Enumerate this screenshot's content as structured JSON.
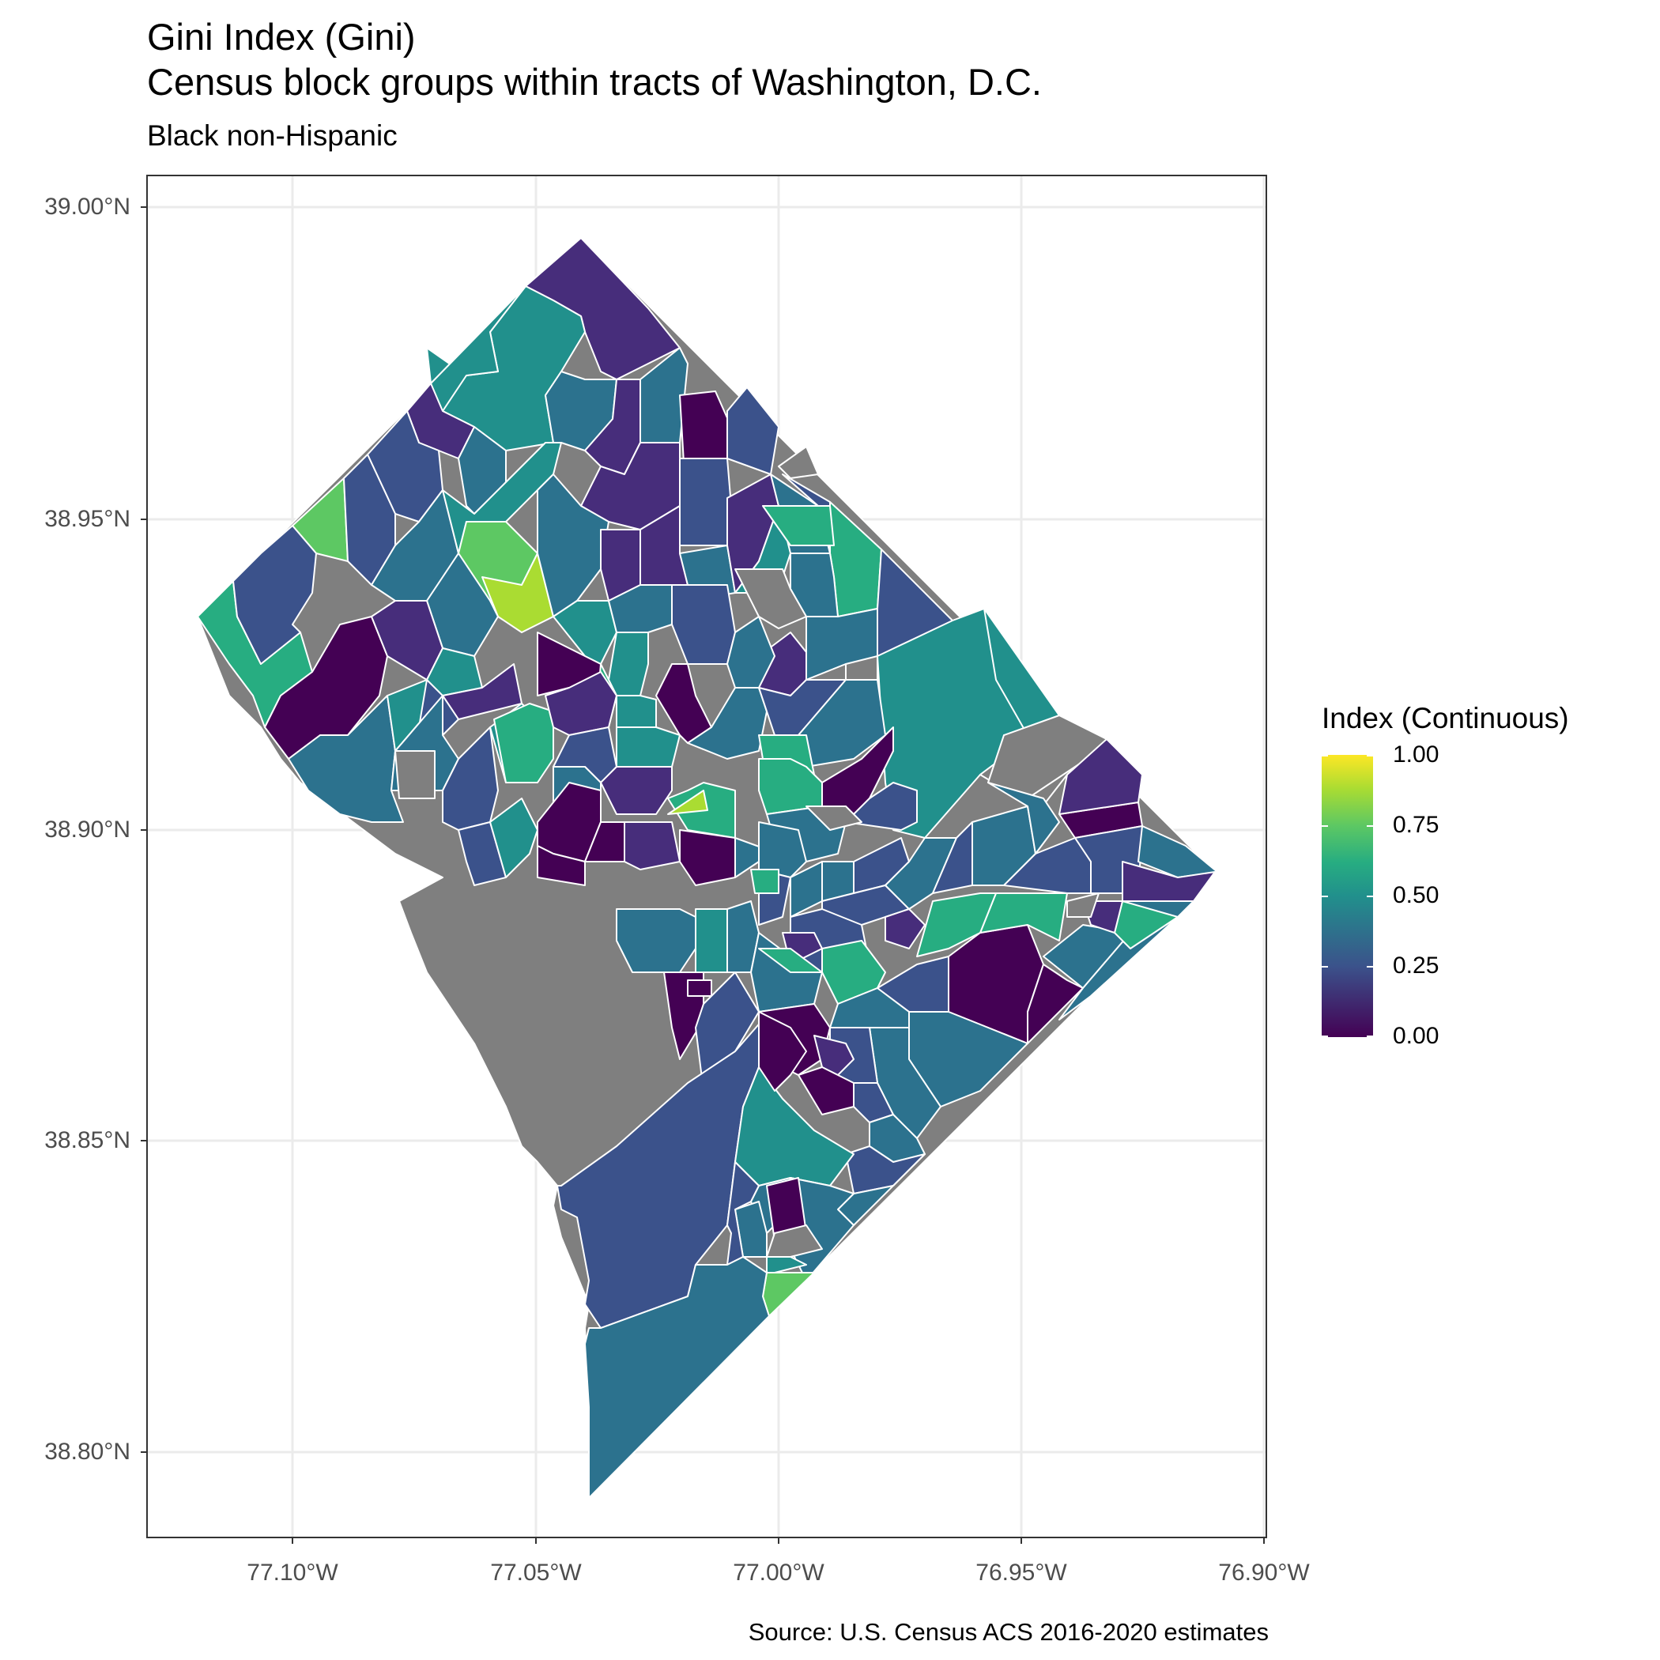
{
  "title_line1": "Gini Index (Gini)",
  "title_line2": "Census block groups within tracts of Washington, D.C.",
  "subtitle": "Black non-Hispanic",
  "caption": "Source: U.S. Census ACS 2016-2020 estimates",
  "colors": {
    "missing": "#7f7f7f",
    "v0": "#440154",
    "v1": "#472d7b",
    "v2": "#3b528b",
    "v3": "#2c728e",
    "v4": "#21908c",
    "v5": "#27ad81",
    "v6": "#5dc863",
    "v7": "#aadc32",
    "v8": "#fde725",
    "border": "#ffffff",
    "panel_border": "#333333",
    "grid": "#ebebeb"
  },
  "map": {
    "y_ticks": [
      "39.00°N",
      "38.95°N",
      "38.90°N",
      "38.85°N",
      "38.80°N"
    ],
    "x_ticks": [
      "77.10°W",
      "77.05°W",
      "77.00°W",
      "76.95°W",
      "76.90°W"
    ]
  },
  "legend": {
    "title": "Index (Continuous)",
    "labels": [
      "1.00",
      "0.75",
      "0.50",
      "0.25",
      "0.00"
    ]
  }
}
